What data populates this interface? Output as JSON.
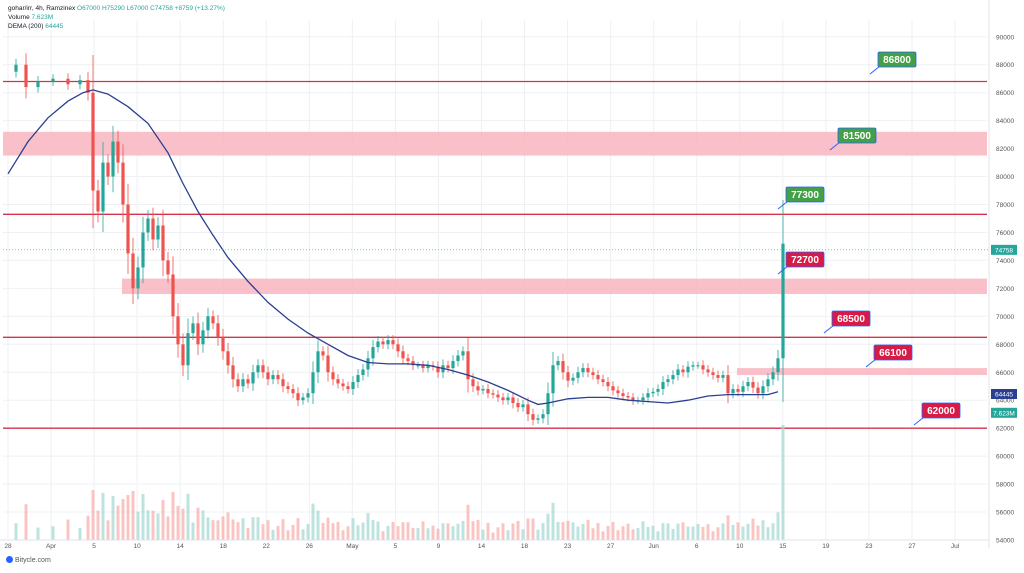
{
  "header": {
    "line1": {
      "symbol": "gohar/irr, 4h, Ramzinex",
      "open": "O67000",
      "high": "H75290",
      "low": "L67000",
      "close": "C74758",
      "change": "+8759 (+13.27%)"
    },
    "line2": {
      "label": "Volume",
      "value": "7.623M"
    },
    "line3": {
      "label": "DEMA (200)",
      "value": "64445"
    }
  },
  "credit": "Bitycle.com",
  "colors": {
    "up": "#26a69a",
    "down": "#ef5350",
    "level_line": "#d6314a",
    "zone_fill": "#f9b5bf",
    "dema": "#2a3f8f",
    "green_label": "#43a047",
    "red_label": "#d81b46",
    "grid": "#eef0f3"
  },
  "chart_data": {
    "type": "candlestick",
    "y_axis": {
      "ticks": [
        "90000",
        "88000",
        "86000",
        "84000",
        "82000",
        "80000",
        "78000",
        "76000",
        "74000",
        "72000",
        "70000",
        "68000",
        "66000",
        "64000",
        "62000",
        "60000",
        "58000",
        "56000",
        "54000"
      ],
      "range": [
        54000,
        91200
      ]
    },
    "x_axis": {
      "ticks": [
        "28",
        "Apr",
        "5",
        "10",
        "14",
        "18",
        "22",
        "26",
        "May",
        "5",
        "9",
        "14",
        "18",
        "23",
        "27",
        "Jun",
        "6",
        "10",
        "15",
        "19",
        "23",
        "27",
        "Jul"
      ]
    },
    "price_tags": [
      {
        "value": "74758",
        "color": "#26a69a"
      },
      {
        "value": "64445",
        "color": "#2a3f8f"
      },
      {
        "value": "7.623M",
        "color": "#26a69a"
      }
    ],
    "levels": [
      {
        "value": 86800,
        "label": "86800",
        "label_color": "green"
      },
      {
        "value": 77300,
        "label": "77300",
        "label_color": "green"
      },
      {
        "value": 68500,
        "label": "68500",
        "label_color": "red"
      },
      {
        "value": 62000,
        "label": "62000",
        "label_color": "red"
      }
    ],
    "zones": [
      {
        "from": 81500,
        "to": 83200,
        "label": "81500",
        "label_color": "green"
      },
      {
        "from": 71600,
        "to": 72700,
        "label": "72700",
        "label_color": "red"
      },
      {
        "from": 65800,
        "to": 66300,
        "label": "66100",
        "label_color": "red"
      }
    ],
    "price_series": [
      [
        0,
        87500
      ],
      [
        8,
        88000
      ],
      [
        18,
        86400
      ],
      [
        30,
        86800
      ],
      [
        45,
        87000
      ],
      [
        60,
        86600
      ],
      [
        72,
        86900
      ],
      [
        80,
        86000
      ],
      [
        85,
        79000
      ],
      [
        90,
        77500
      ],
      [
        95,
        81000
      ],
      [
        100,
        80000
      ],
      [
        105,
        82500
      ],
      [
        110,
        81000
      ],
      [
        115,
        78000
      ],
      [
        120,
        74500
      ],
      [
        125,
        72000
      ],
      [
        130,
        73500
      ],
      [
        135,
        76000
      ],
      [
        140,
        77000
      ],
      [
        145,
        75500
      ],
      [
        150,
        76500
      ],
      [
        155,
        74000
      ],
      [
        160,
        73000
      ],
      [
        165,
        70000
      ],
      [
        170,
        68000
      ],
      [
        175,
        66500
      ],
      [
        180,
        68800
      ],
      [
        185,
        69500
      ],
      [
        190,
        68000
      ],
      [
        195,
        69000
      ],
      [
        200,
        70000
      ],
      [
        205,
        69500
      ],
      [
        210,
        68500
      ],
      [
        215,
        67500
      ],
      [
        220,
        66500
      ],
      [
        225,
        65500
      ],
      [
        230,
        65000
      ],
      [
        235,
        65500
      ],
      [
        240,
        65200
      ],
      [
        245,
        66000
      ],
      [
        250,
        66500
      ],
      [
        255,
        66000
      ],
      [
        260,
        65500
      ],
      [
        265,
        65800
      ],
      [
        270,
        65500
      ],
      [
        275,
        65000
      ],
      [
        280,
        64800
      ],
      [
        285,
        64500
      ],
      [
        290,
        64000
      ],
      [
        295,
        64200
      ],
      [
        300,
        64500
      ],
      [
        305,
        66000
      ],
      [
        310,
        67500
      ],
      [
        315,
        67200
      ],
      [
        320,
        66000
      ],
      [
        325,
        65500
      ],
      [
        330,
        65200
      ],
      [
        335,
        65000
      ],
      [
        340,
        64800
      ],
      [
        345,
        65300
      ],
      [
        350,
        65800
      ],
      [
        355,
        66200
      ],
      [
        360,
        67000
      ],
      [
        365,
        67800
      ],
      [
        370,
        68200
      ],
      [
        375,
        68000
      ],
      [
        380,
        68300
      ],
      [
        385,
        68000
      ],
      [
        390,
        67500
      ],
      [
        395,
        67000
      ],
      [
        400,
        66800
      ],
      [
        405,
        66500
      ],
      [
        410,
        66500
      ],
      [
        415,
        66300
      ],
      [
        420,
        66500
      ],
      [
        425,
        66400
      ],
      [
        430,
        66000
      ],
      [
        435,
        66500
      ],
      [
        440,
        66300
      ],
      [
        445,
        66800
      ],
      [
        450,
        67200
      ],
      [
        455,
        67500
      ],
      [
        460,
        65500
      ],
      [
        465,
        65000
      ],
      [
        470,
        64700
      ],
      [
        475,
        64800
      ],
      [
        480,
        64500
      ],
      [
        485,
        64400
      ],
      [
        490,
        64200
      ],
      [
        495,
        64000
      ],
      [
        500,
        64200
      ],
      [
        505,
        63800
      ],
      [
        510,
        63500
      ],
      [
        515,
        63700
      ],
      [
        520,
        63000
      ],
      [
        525,
        62600
      ],
      [
        530,
        62700
      ],
      [
        535,
        63000
      ],
      [
        540,
        64500
      ],
      [
        545,
        66500
      ],
      [
        550,
        66800
      ],
      [
        555,
        66000
      ],
      [
        560,
        65400
      ],
      [
        565,
        65600
      ],
      [
        570,
        66000
      ],
      [
        575,
        66300
      ],
      [
        580,
        66000
      ],
      [
        585,
        65800
      ],
      [
        590,
        65500
      ],
      [
        595,
        65300
      ],
      [
        600,
        65000
      ],
      [
        605,
        64700
      ],
      [
        610,
        64500
      ],
      [
        615,
        64300
      ],
      [
        620,
        64200
      ],
      [
        625,
        64000
      ],
      [
        630,
        64000
      ],
      [
        635,
        64200
      ],
      [
        640,
        64500
      ],
      [
        645,
        64600
      ],
      [
        650,
        64800
      ],
      [
        655,
        65300
      ],
      [
        660,
        65500
      ],
      [
        665,
        65800
      ],
      [
        670,
        66200
      ],
      [
        675,
        66000
      ],
      [
        680,
        66400
      ],
      [
        685,
        66500
      ],
      [
        690,
        66500
      ],
      [
        695,
        66200
      ],
      [
        700,
        66000
      ],
      [
        705,
        65800
      ],
      [
        710,
        65600
      ],
      [
        715,
        65800
      ],
      [
        720,
        64500
      ],
      [
        725,
        64800
      ],
      [
        730,
        64600
      ],
      [
        735,
        65000
      ],
      [
        740,
        65300
      ],
      [
        745,
        64900
      ],
      [
        750,
        64500
      ],
      [
        755,
        65000
      ],
      [
        760,
        65500
      ],
      [
        765,
        66000
      ],
      [
        770,
        67000
      ],
      [
        775,
        75200
      ]
    ],
    "dema_series": [
      [
        0,
        80200
      ],
      [
        20,
        82500
      ],
      [
        40,
        84200
      ],
      [
        60,
        85400
      ],
      [
        75,
        86000
      ],
      [
        85,
        86200
      ],
      [
        100,
        85900
      ],
      [
        120,
        85000
      ],
      [
        140,
        83800
      ],
      [
        160,
        81700
      ],
      [
        175,
        79500
      ],
      [
        190,
        77500
      ],
      [
        205,
        75800
      ],
      [
        220,
        74200
      ],
      [
        240,
        72500
      ],
      [
        260,
        71000
      ],
      [
        280,
        69800
      ],
      [
        300,
        68800
      ],
      [
        320,
        68000
      ],
      [
        340,
        67200
      ],
      [
        360,
        66700
      ],
      [
        380,
        66600
      ],
      [
        400,
        66600
      ],
      [
        420,
        66500
      ],
      [
        440,
        66200
      ],
      [
        460,
        65800
      ],
      [
        480,
        65300
      ],
      [
        500,
        64700
      ],
      [
        520,
        64000
      ],
      [
        530,
        63700
      ],
      [
        540,
        63800
      ],
      [
        560,
        64100
      ],
      [
        580,
        64200
      ],
      [
        600,
        64200
      ],
      [
        620,
        64000
      ],
      [
        640,
        63900
      ],
      [
        660,
        63800
      ],
      [
        680,
        64000
      ],
      [
        700,
        64300
      ],
      [
        720,
        64400
      ],
      [
        740,
        64400
      ],
      [
        760,
        64400
      ],
      [
        770,
        64600
      ]
    ]
  }
}
